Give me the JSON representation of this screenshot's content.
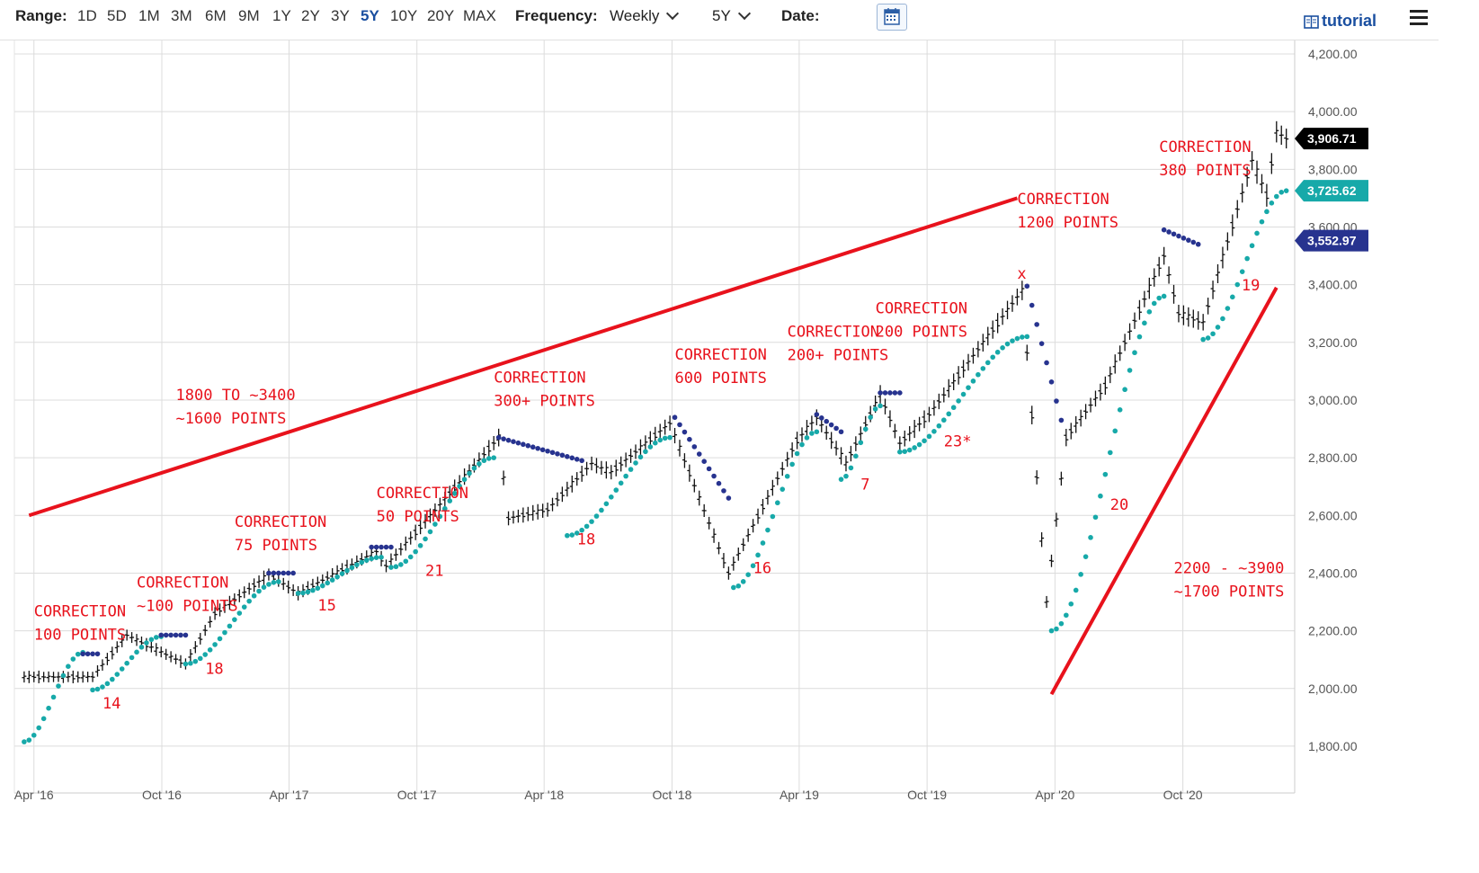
{
  "toolbar": {
    "range_label": "Range:",
    "ranges": [
      "1D",
      "5D",
      "1M",
      "3M",
      "6M",
      "9M",
      "1Y",
      "2Y",
      "3Y",
      "5Y",
      "10Y",
      "20Y",
      "MAX"
    ],
    "active_range": "5Y",
    "frequency_label": "Frequency:",
    "frequency_value": "Weekly",
    "period_value": "5Y",
    "date_label": "Date:",
    "tutorial_label": "tutorial",
    "icons": [
      "calendar-icon",
      "book-icon",
      "menu-icon",
      "chevron-down-icon"
    ]
  },
  "colors": {
    "price": "#111111",
    "support_dots": "#17a9a9",
    "resistance_dots": "#27338f",
    "trendline": "#e8121c",
    "annotation": "#e8121c",
    "grid": "#dcdcdc",
    "badge_price": "#000000",
    "badge_teal": "#17a9a9",
    "badge_navy": "#27338f"
  },
  "chart_data": {
    "type": "line",
    "frequency": "weekly",
    "ylim": [
      1700,
      4200
    ],
    "y_ticks": [
      "1,800.00",
      "2,000.00",
      "2,200.00",
      "2,400.00",
      "2,600.00",
      "2,800.00",
      "3,000.00",
      "3,200.00",
      "3,400.00",
      "3,600.00",
      "3,800.00",
      "4,000.00",
      "4,200.00"
    ],
    "x_ticks": [
      "Apr '16",
      "Oct '16",
      "Apr '17",
      "Oct '17",
      "Apr '18",
      "Oct '18",
      "Apr '19",
      "Oct '19",
      "Apr '20",
      "Oct '20"
    ],
    "grid": true,
    "price_keypoints": [
      [
        "2016-03-18",
        2040
      ],
      [
        "2016-06-24",
        2040
      ],
      [
        "2016-08-12",
        2185
      ],
      [
        "2016-11-04",
        2085
      ],
      [
        "2016-12-16",
        2260
      ],
      [
        "2017-03-03",
        2395
      ],
      [
        "2017-04-14",
        2330
      ],
      [
        "2017-08-04",
        2475
      ],
      [
        "2017-08-18",
        2425
      ],
      [
        "2018-01-26",
        2870
      ],
      [
        "2018-02-09",
        2590
      ],
      [
        "2018-04-06",
        2620
      ],
      [
        "2018-06-08",
        2780
      ],
      [
        "2018-07-06",
        2750
      ],
      [
        "2018-09-28",
        2920
      ],
      [
        "2018-12-21",
        2400
      ],
      [
        "2019-03-29",
        2860
      ],
      [
        "2019-04-26",
        2940
      ],
      [
        "2019-06-07",
        2780
      ],
      [
        "2019-07-26",
        3020
      ],
      [
        "2019-08-23",
        2850
      ],
      [
        "2019-10-04",
        2950
      ],
      [
        "2020-02-14",
        3380
      ],
      [
        "2020-03-20",
        2300
      ],
      [
        "2020-04-17",
        2870
      ],
      [
        "2020-06-12",
        3050
      ],
      [
        "2020-09-04",
        3500
      ],
      [
        "2020-09-25",
        3300
      ],
      [
        "2020-10-30",
        3270
      ],
      [
        "2021-01-08",
        3830
      ],
      [
        "2021-01-29",
        3710
      ],
      [
        "2021-02-12",
        3930
      ],
      [
        "2021-02-26",
        3906.71
      ]
    ],
    "series": [
      {
        "style": "candles",
        "color": "#111111"
      },
      {
        "style": "dots",
        "color": "#17a9a9"
      },
      {
        "style": "dots",
        "color": "#27338f"
      }
    ],
    "support_segments": [
      {
        "start": "2016-03-18",
        "end": "2016-06-10",
        "from": 1815,
        "to": 2125
      },
      {
        "start": "2016-06-24",
        "end": "2016-09-30",
        "from": 1995,
        "to": 2180
      },
      {
        "start": "2016-11-04",
        "end": "2017-03-17",
        "from": 2085,
        "to": 2370
      },
      {
        "start": "2017-04-14",
        "end": "2017-08-11",
        "from": 2330,
        "to": 2455
      },
      {
        "start": "2017-08-25",
        "end": "2018-01-19",
        "from": 2420,
        "to": 2800
      },
      {
        "start": "2018-05-04",
        "end": "2018-09-28",
        "from": 2530,
        "to": 2870
      },
      {
        "start": "2018-12-28",
        "end": "2019-04-26",
        "from": 2350,
        "to": 2890
      },
      {
        "start": "2019-05-31",
        "end": "2019-07-26",
        "from": 2725,
        "to": 2980
      },
      {
        "start": "2019-08-23",
        "end": "2020-02-21",
        "from": 2820,
        "to": 3220
      },
      {
        "start": "2020-03-27",
        "end": "2020-09-04",
        "from": 2200,
        "to": 3360
      },
      {
        "start": "2020-10-30",
        "end": "2021-02-26",
        "from": 3210,
        "to": 3725.62
      }
    ],
    "resistance_segments": [
      {
        "start": "2016-06-10",
        "end": "2016-07-01",
        "value": 2120
      },
      {
        "start": "2016-09-30",
        "end": "2016-11-04",
        "value": 2185
      },
      {
        "start": "2017-03-03",
        "end": "2017-04-07",
        "value": 2400
      },
      {
        "start": "2017-07-28",
        "end": "2017-08-25",
        "value": 2490
      },
      {
        "start": "2018-01-26",
        "end": "2018-05-25",
        "from": 2870,
        "to": 2790
      },
      {
        "start": "2018-10-05",
        "end": "2018-12-21",
        "from": 2940,
        "to": 2660
      },
      {
        "start": "2019-04-26",
        "end": "2019-05-31",
        "from": 2950,
        "to": 2890
      },
      {
        "start": "2019-07-26",
        "end": "2019-08-23",
        "value": 3025
      },
      {
        "start": "2020-02-21",
        "end": "2020-04-10",
        "from": 3395,
        "to": 2930
      },
      {
        "start": "2020-09-04",
        "end": "2020-10-23",
        "from": 3590,
        "to": 3540
      }
    ],
    "badges": [
      {
        "label": "3,906.71",
        "value": 3906.71
      },
      {
        "label": "3,725.62",
        "value": 3725.62
      },
      {
        "label": "3,552.97",
        "value": 3552.97
      }
    ],
    "trendlines": [
      {
        "start": "2016-03-25",
        "end": "2020-02-07",
        "from": 2600,
        "to": 3700
      },
      {
        "start": "2020-03-27",
        "end": "2021-02-12",
        "from": 1980,
        "to": 3390
      }
    ],
    "annotations": [
      {
        "lines": [
          "CORRECTION",
          "100 POINTS"
        ],
        "date": "2016-04-01",
        "value": 2250
      },
      {
        "lines": [
          "CORRECTION",
          "~100 POINTS"
        ],
        "date": "2016-08-26",
        "value": 2350
      },
      {
        "lines": [
          "CORRECTION",
          "75 POINTS"
        ],
        "date": "2017-01-13",
        "value": 2560
      },
      {
        "lines": [
          "CORRECTION",
          "50 POINTS"
        ],
        "date": "2017-08-04",
        "value": 2660
      },
      {
        "lines": [
          "CORRECTION",
          "300+ POINTS"
        ],
        "date": "2018-01-19",
        "value": 3060
      },
      {
        "lines": [
          "CORRECTION",
          "600 POINTS"
        ],
        "date": "2018-10-05",
        "value": 3140
      },
      {
        "lines": [
          "CORRECTION",
          "200+ POINTS"
        ],
        "date": "2019-03-15",
        "value": 3220
      },
      {
        "lines": [
          "CORRECTION",
          "200 POINTS"
        ],
        "date": "2019-07-19",
        "value": 3300
      },
      {
        "lines": [
          "CORRECTION",
          "1200 POINTS"
        ],
        "date": "2020-02-07",
        "value": 3680
      },
      {
        "lines": [
          "CORRECTION",
          "380 POINTS"
        ],
        "date": "2020-08-28",
        "value": 3860
      },
      {
        "lines": [
          "1800 TO ~3400",
          "~1600 POINTS"
        ],
        "date": "2016-10-21",
        "value": 3000
      },
      {
        "lines": [
          "2200 - ~3900",
          "~1700 POINTS"
        ],
        "date": "2020-09-18",
        "value": 2400
      },
      {
        "lines": [
          "14"
        ],
        "date": "2016-07-08",
        "value": 1930
      },
      {
        "lines": [
          "18"
        ],
        "date": "2016-12-02",
        "value": 2050
      },
      {
        "lines": [
          "15"
        ],
        "date": "2017-05-12",
        "value": 2270
      },
      {
        "lines": [
          "21"
        ],
        "date": "2017-10-13",
        "value": 2390
      },
      {
        "lines": [
          "18"
        ],
        "date": "2018-05-18",
        "value": 2500
      },
      {
        "lines": [
          "16"
        ],
        "date": "2019-01-25",
        "value": 2400
      },
      {
        "lines": [
          "7"
        ],
        "date": "2019-06-28",
        "value": 2690
      },
      {
        "lines": [
          "23*"
        ],
        "date": "2019-10-25",
        "value": 2840
      },
      {
        "lines": [
          "20"
        ],
        "date": "2020-06-19",
        "value": 2620
      },
      {
        "lines": [
          "19"
        ],
        "date": "2020-12-24",
        "value": 3380
      },
      {
        "lines": [
          "x"
        ],
        "date": "2020-02-07",
        "value": 3420
      }
    ]
  }
}
